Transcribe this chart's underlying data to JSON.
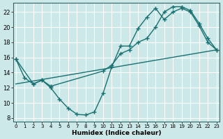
{
  "title": "",
  "xlabel": "Humidex (Indice chaleur)",
  "ylabel": "",
  "background_color": "#cce8e8",
  "grid_color": "#ffffff",
  "line_color": "#1a7070",
  "x_ticks": [
    0,
    1,
    2,
    3,
    4,
    5,
    6,
    7,
    8,
    9,
    10,
    11,
    12,
    13,
    14,
    15,
    16,
    17,
    18,
    19,
    20,
    21,
    22,
    23
  ],
  "y_ticks": [
    8,
    10,
    12,
    14,
    16,
    18,
    20,
    22
  ],
  "xlim": [
    -0.3,
    23.3
  ],
  "ylim": [
    7.5,
    23.2
  ],
  "series": [
    {
      "x": [
        0,
        1,
        2,
        3,
        4,
        5,
        6,
        7,
        8,
        9,
        10,
        11,
        12,
        13,
        14,
        15,
        16,
        17,
        18,
        19,
        20,
        21,
        22,
        23
      ],
      "y": [
        15.8,
        13.3,
        12.5,
        13.0,
        12.0,
        10.5,
        9.3,
        8.5,
        8.4,
        8.8,
        11.3,
        14.8,
        17.5,
        17.5,
        19.8,
        21.3,
        22.5,
        21.0,
        22.0,
        22.5,
        22.0,
        20.2,
        18.0,
        17.0
      ]
    },
    {
      "x": [
        0,
        2,
        3,
        4,
        10,
        11,
        12,
        13,
        14,
        15,
        16,
        17,
        18,
        19,
        20,
        21,
        22,
        23
      ],
      "y": [
        15.8,
        12.5,
        13.0,
        12.2,
        14.2,
        15.0,
        16.5,
        17.0,
        18.0,
        18.5,
        20.0,
        22.0,
        22.7,
        22.7,
        22.2,
        20.5,
        18.5,
        17.0
      ]
    },
    {
      "x": [
        0,
        23
      ],
      "y": [
        12.5,
        17.0
      ]
    }
  ]
}
